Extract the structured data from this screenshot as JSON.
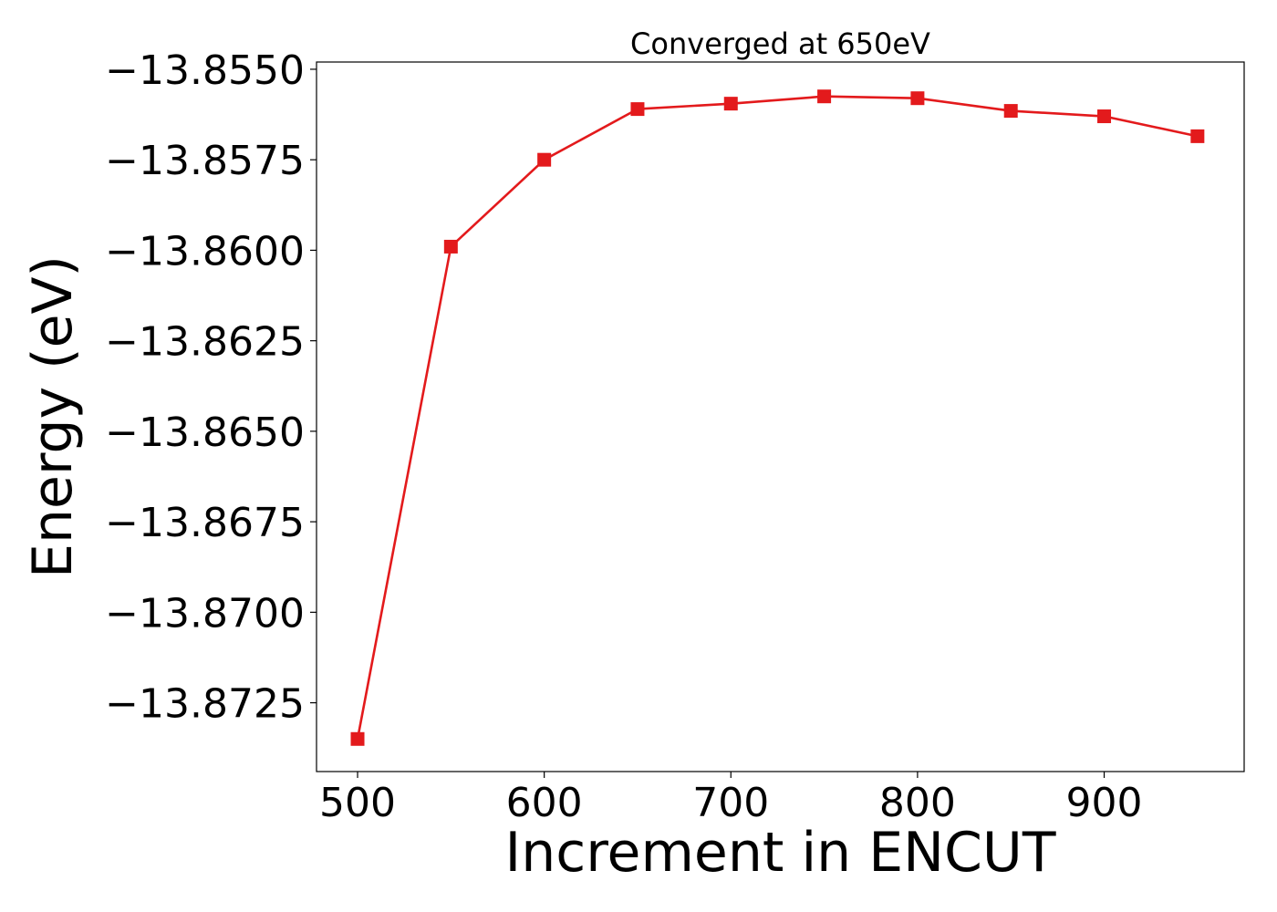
{
  "chart_data": {
    "type": "line",
    "title": "Converged at 650eV",
    "xlabel": "Increment in ENCUT",
    "ylabel": "Energy (eV)",
    "xlim": [
      478,
      975
    ],
    "ylim": [
      -13.8744,
      -13.8548
    ],
    "x_ticks": [
      500,
      600,
      700,
      800,
      900
    ],
    "x_tick_labels": [
      "500",
      "600",
      "700",
      "800",
      "900"
    ],
    "y_ticks": [
      -13.855,
      -13.8575,
      -13.86,
      -13.8625,
      -13.865,
      -13.8675,
      -13.87,
      -13.8725
    ],
    "y_tick_labels": [
      "−13.8550",
      "−13.8575",
      "−13.8600",
      "−13.8625",
      "−13.8650",
      "−13.8675",
      "−13.8700",
      "−13.8725"
    ],
    "grid": false,
    "series": [
      {
        "color": "#e31a1c",
        "marker": "square",
        "x": [
          500,
          550,
          600,
          650,
          700,
          750,
          800,
          850,
          900,
          950
        ],
        "y": [
          -13.8735,
          -13.8599,
          -13.8575,
          -13.8561,
          -13.85595,
          -13.85575,
          -13.8558,
          -13.85615,
          -13.8563,
          -13.85685
        ]
      }
    ]
  }
}
